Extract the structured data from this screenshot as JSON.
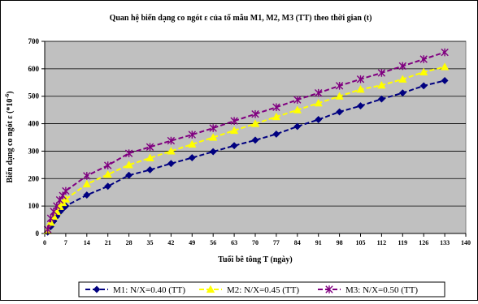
{
  "chart_data": {
    "type": "line",
    "title": "Quan hệ biến dạng co ngót ε của tổ mẫu M1, M2, M3 (TT) theo thời gian (t)",
    "xlabel": "Tuổi bê tông T (ngày)",
    "ylabel": "Biến dạng co ngót ε (*10",
    "ylabel_exponent": "-6",
    "ylabel_suffix": ")",
    "xlim": [
      0,
      140
    ],
    "ylim": [
      0,
      700
    ],
    "x_ticks": [
      0,
      7,
      14,
      21,
      28,
      35,
      42,
      49,
      56,
      63,
      70,
      77,
      84,
      91,
      98,
      105,
      112,
      119,
      126,
      133,
      140
    ],
    "y_ticks": [
      0,
      100,
      200,
      300,
      400,
      500,
      600,
      700
    ],
    "grid": "horizontal",
    "plot_background": "#c0c0c0",
    "legend_position": "bottom",
    "series": [
      {
        "name": "M1: N/X=0.40 (TT)",
        "color": "#000080",
        "marker": "diamond",
        "x": [
          1,
          2,
          3,
          4,
          5,
          6,
          7,
          14,
          21,
          28,
          35,
          42,
          49,
          56,
          63,
          70,
          77,
          84,
          91,
          98,
          105,
          112,
          119,
          126,
          133
        ],
        "y": [
          5,
          25,
          45,
          62,
          78,
          90,
          100,
          140,
          172,
          212,
          232,
          255,
          276,
          298,
          320,
          340,
          362,
          390,
          415,
          443,
          465,
          490,
          512,
          538,
          557
        ]
      },
      {
        "name": "M2: N/X=0.45 (TT)",
        "color": "#ffff00",
        "marker": "triangle",
        "x": [
          1,
          2,
          3,
          4,
          5,
          6,
          7,
          14,
          21,
          28,
          35,
          42,
          49,
          56,
          63,
          70,
          77,
          84,
          91,
          98,
          105,
          112,
          119,
          126,
          133
        ],
        "y": [
          10,
          40,
          62,
          80,
          98,
          112,
          125,
          180,
          215,
          250,
          275,
          300,
          325,
          350,
          375,
          400,
          425,
          450,
          475,
          500,
          525,
          540,
          562,
          588,
          607
        ]
      },
      {
        "name": "M3: N/X=0.50 (TT)",
        "color": "#800080",
        "marker": "star",
        "x": [
          1,
          2,
          3,
          4,
          5,
          6,
          7,
          14,
          21,
          28,
          35,
          42,
          49,
          56,
          63,
          70,
          77,
          84,
          91,
          98,
          105,
          112,
          119,
          126,
          133
        ],
        "y": [
          15,
          55,
          80,
          100,
          122,
          138,
          155,
          210,
          248,
          292,
          315,
          338,
          360,
          384,
          410,
          435,
          460,
          487,
          512,
          538,
          562,
          585,
          610,
          635,
          660
        ]
      }
    ]
  }
}
